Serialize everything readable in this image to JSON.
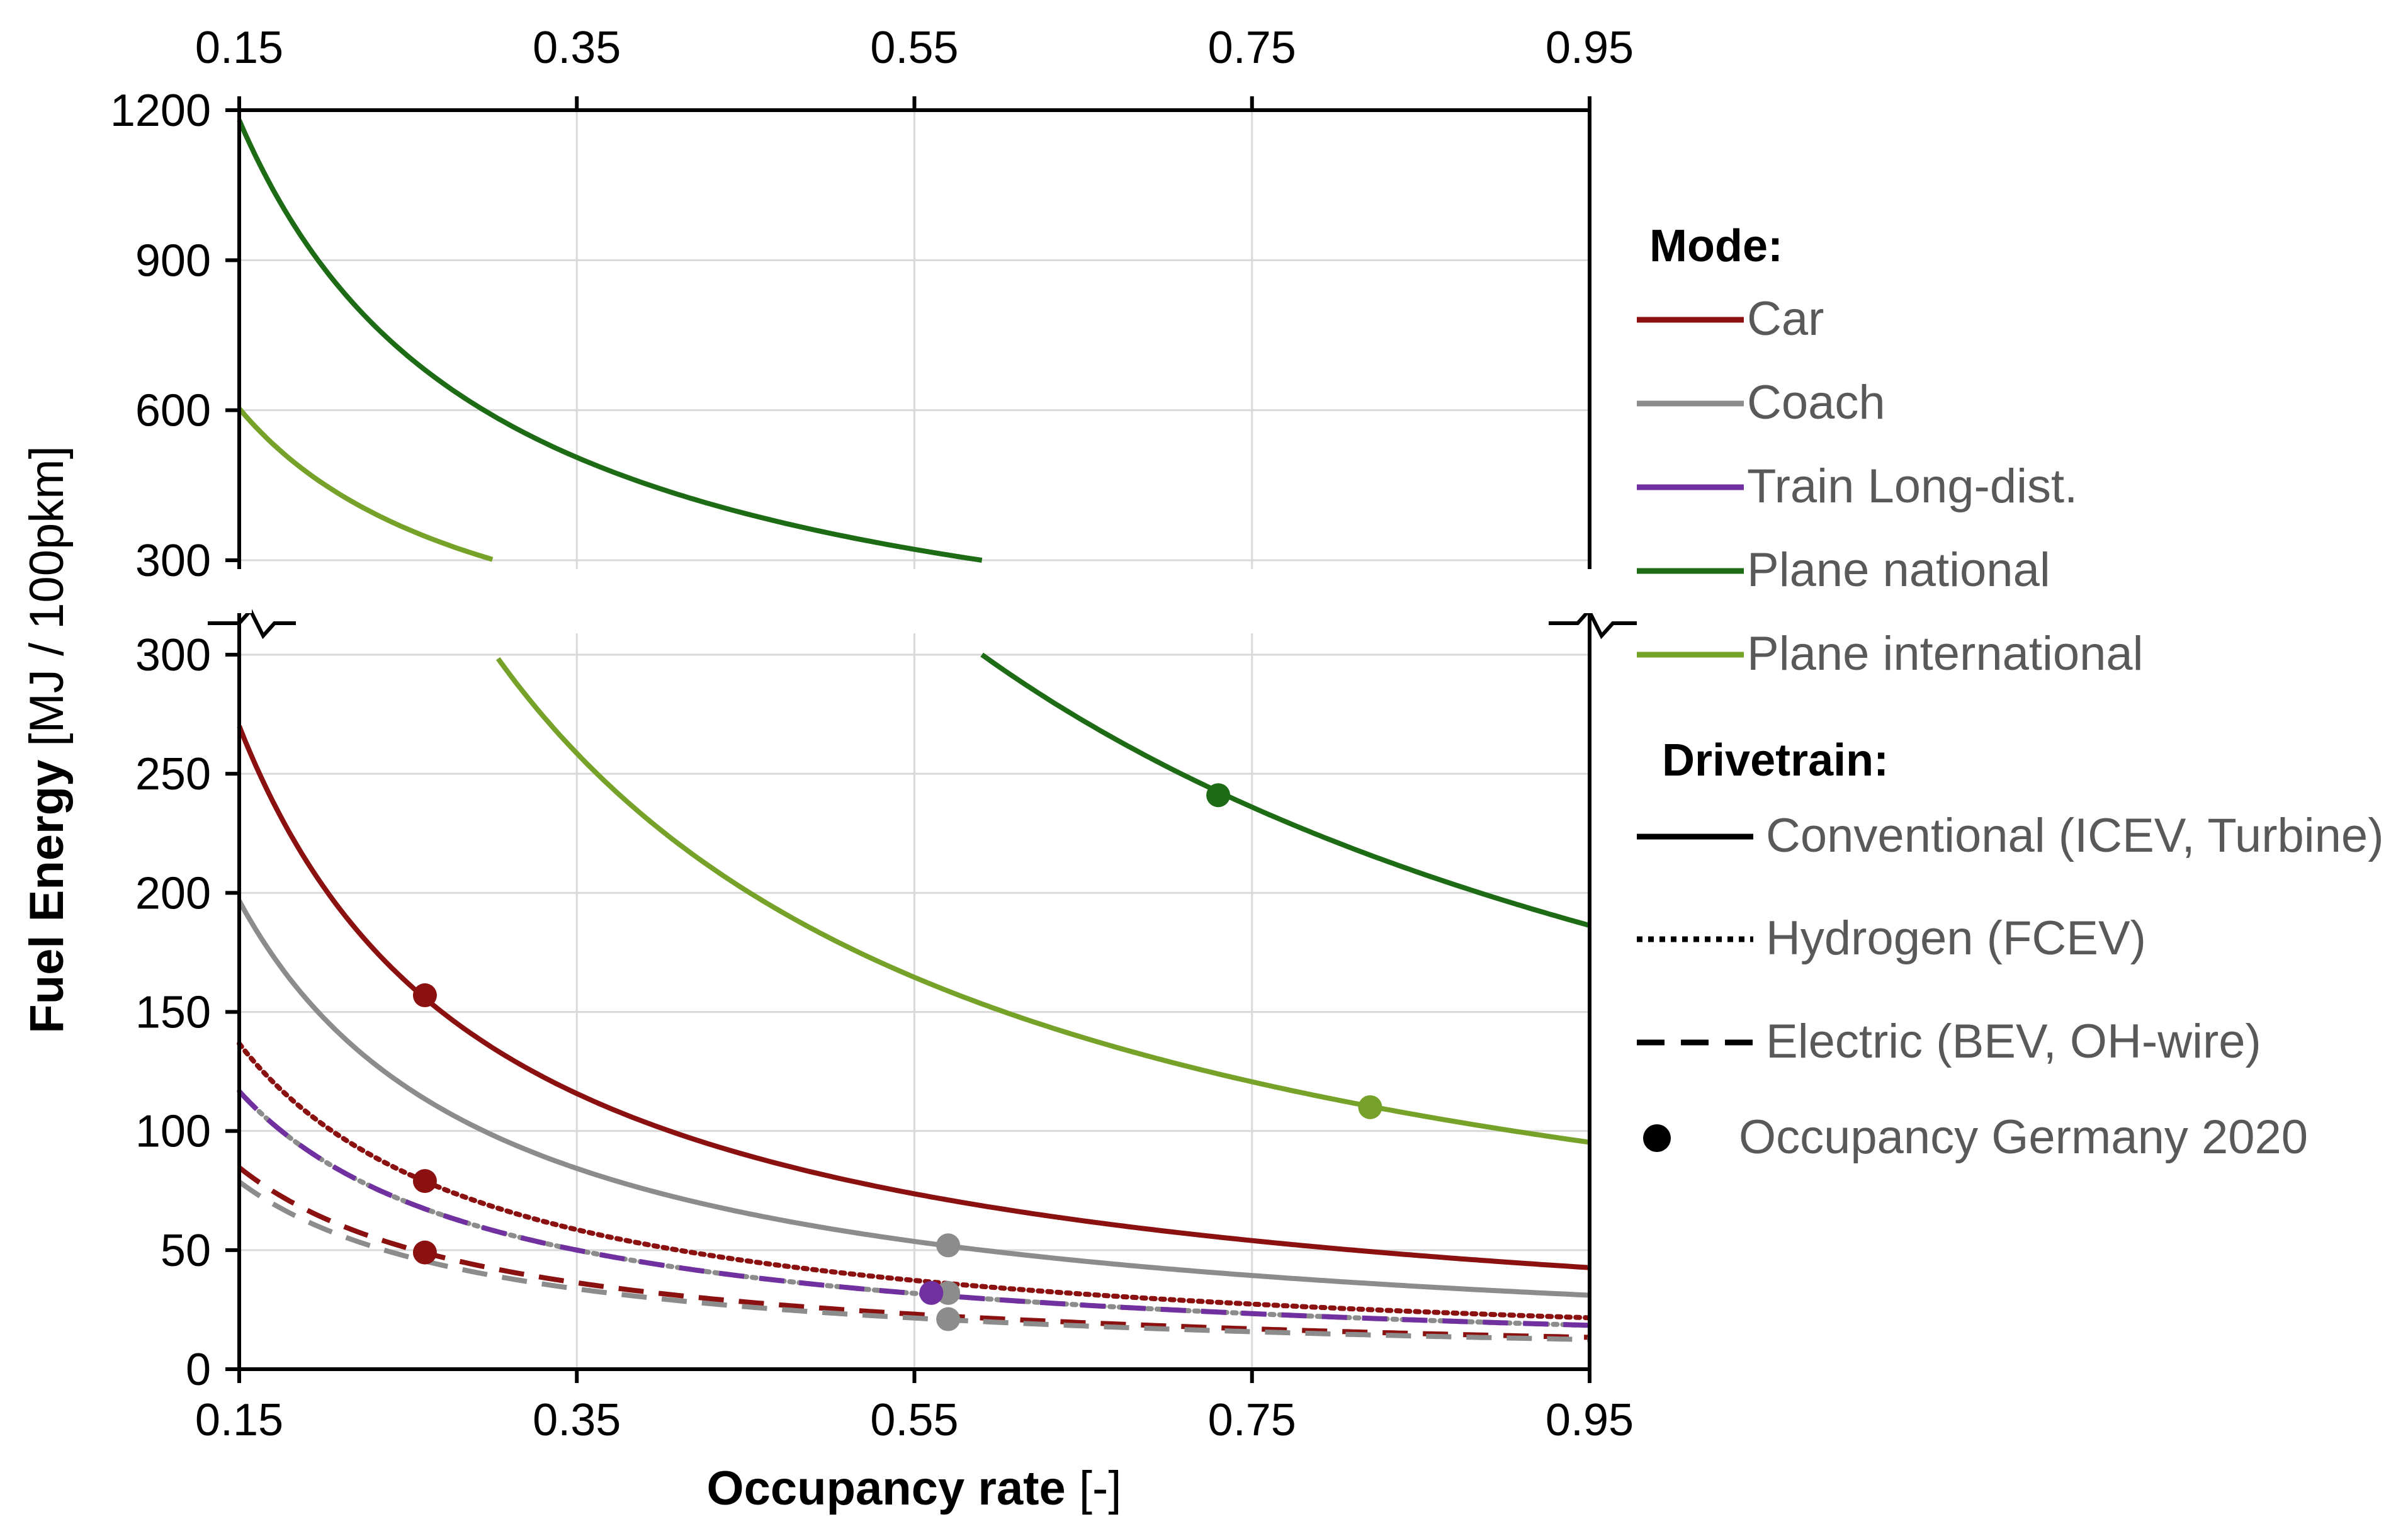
{
  "chart_data": {
    "type": "line",
    "title": "",
    "xlabel_bold": "Occupancy rate",
    "xlabel_unit": " [-]",
    "ylabel_bold": "Fuel Energy",
    "ylabel_unit": " [MJ / 100pkm]",
    "x_ticks": [
      "0.15",
      "0.35",
      "0.55",
      "0.75",
      "0.95"
    ],
    "xlim": [
      0.15,
      0.95
    ],
    "upper_panel": {
      "ylim": [
        300,
        1200
      ],
      "ticks": [
        "1200",
        "900",
        "600",
        "300"
      ]
    },
    "lower_panel": {
      "ylim": [
        0,
        300
      ],
      "ticks": [
        "300",
        "250",
        "200",
        "150",
        "100",
        "50",
        "0"
      ]
    },
    "axis_break": true,
    "grid": true,
    "legend": {
      "placement": "right",
      "mode_heading": "Mode:",
      "modes": [
        {
          "label": "Car",
          "color": "#8B1010"
        },
        {
          "label": "Coach",
          "color": "#8C8C8C"
        },
        {
          "label": "Train Long-dist.",
          "color": "#7030A0"
        },
        {
          "label": "Plane national",
          "color": "#1E6B16"
        },
        {
          "label": "Plane international",
          "color": "#76A22A"
        }
      ],
      "drivetrain_heading": "Drivetrain:",
      "drivetrains": [
        {
          "label": "Conventional (ICEV, Turbine)",
          "style": "solid"
        },
        {
          "label": "Hydrogen (FCEV)",
          "style": "dotted"
        },
        {
          "label": "Electric (BEV, OH-wire)",
          "style": "dashed"
        }
      ],
      "marker_label": "Occupancy Germany 2020"
    },
    "series": [
      {
        "name": "Car conventional",
        "mode": "Car",
        "drivetrain": "solid",
        "color": "#8B1010",
        "k": 40.5,
        "occupancy_2020": 0.26
      },
      {
        "name": "Car hydrogen",
        "mode": "Car",
        "drivetrain": "dotted",
        "color": "#8B1010",
        "k": 20.5,
        "occupancy_2020": 0.26
      },
      {
        "name": "Car electric",
        "mode": "Car",
        "drivetrain": "dashed",
        "color": "#8B1010",
        "k": 12.7,
        "occupancy_2020": 0.26
      },
      {
        "name": "Coach conventional",
        "mode": "Coach",
        "drivetrain": "solid",
        "color": "#8C8C8C",
        "k": 29.5,
        "occupancy_2020": 0.57
      },
      {
        "name": "Coach hydrogen",
        "mode": "Coach",
        "drivetrain": "dotted",
        "color": "#8C8C8C",
        "k": 17.5,
        "occupancy_2020": 0.57
      },
      {
        "name": "Coach electric",
        "mode": "Coach",
        "drivetrain": "dashed",
        "color": "#8C8C8C",
        "k": 11.8,
        "occupancy_2020": 0.57
      },
      {
        "name": "Train Long-dist. electric",
        "mode": "Train Long-dist.",
        "drivetrain": "dashed",
        "color": "#7030A0",
        "k": 17.5,
        "occupancy_2020": 0.56
      },
      {
        "name": "Plane national conventional",
        "mode": "Plane national",
        "drivetrain": "solid",
        "color": "#1E6B16",
        "k": 177,
        "occupancy_2020": 0.73
      },
      {
        "name": "Plane international conventional",
        "mode": "Plane international",
        "drivetrain": "solid",
        "color": "#76A22A",
        "k": 90.5,
        "occupancy_2020": 0.82
      }
    ],
    "occupancy_markers": [
      {
        "series": "Car conventional",
        "x": 0.26,
        "y": 157
      },
      {
        "series": "Car hydrogen",
        "x": 0.26,
        "y": 79
      },
      {
        "series": "Car electric",
        "x": 0.26,
        "y": 49
      },
      {
        "series": "Coach conventional",
        "x": 0.57,
        "y": 52
      },
      {
        "series": "Coach hydrogen",
        "x": 0.57,
        "y": 32
      },
      {
        "series": "Coach electric",
        "x": 0.57,
        "y": 21
      },
      {
        "series": "Train Long-dist. electric",
        "x": 0.56,
        "y": 32
      },
      {
        "series": "Plane national conventional",
        "x": 0.73,
        "y": 241
      },
      {
        "series": "Plane international conventional",
        "x": 0.82,
        "y": 110
      }
    ]
  }
}
